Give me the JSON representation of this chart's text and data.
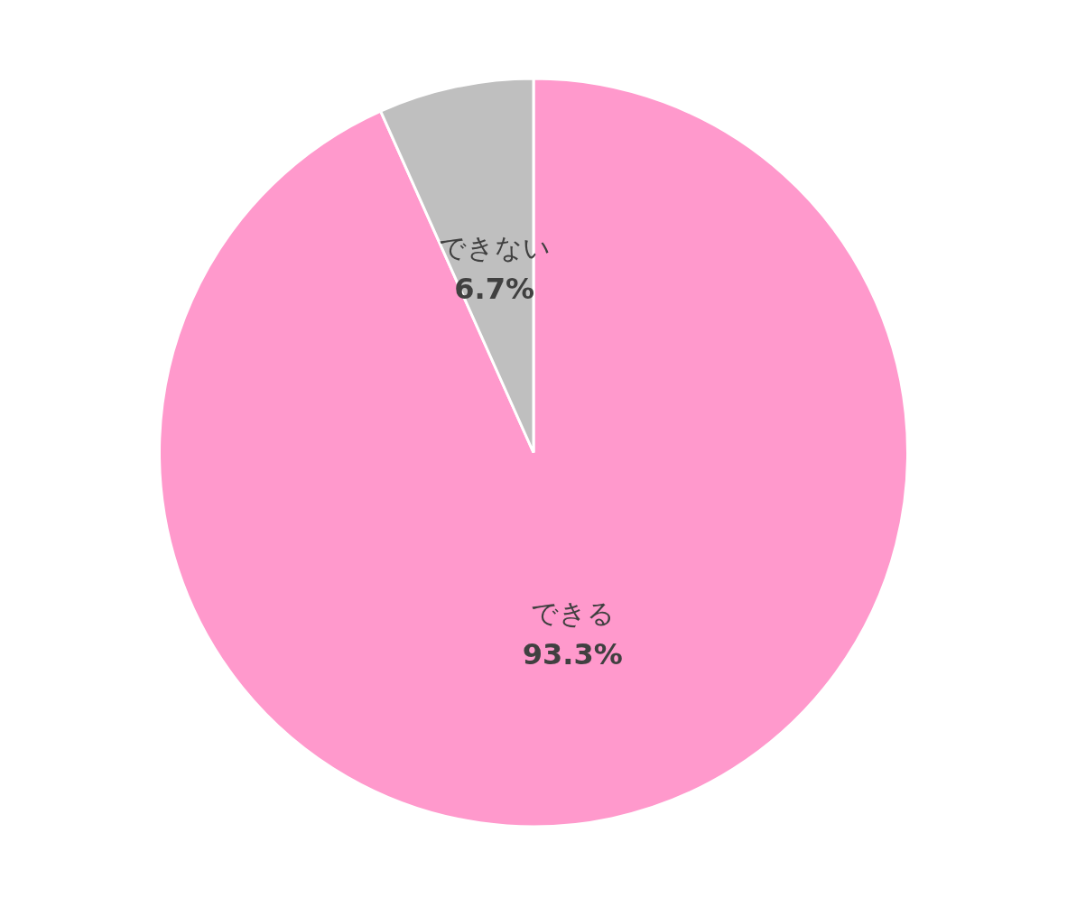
{
  "chart_data": {
    "type": "pie",
    "categories": [
      "できる",
      "できない"
    ],
    "values": [
      93.3,
      6.7
    ],
    "colors": [
      "#ff99cc",
      "#bfbfbf"
    ],
    "value_labels": [
      "93.3%",
      "6.7%"
    ],
    "legend": false
  }
}
